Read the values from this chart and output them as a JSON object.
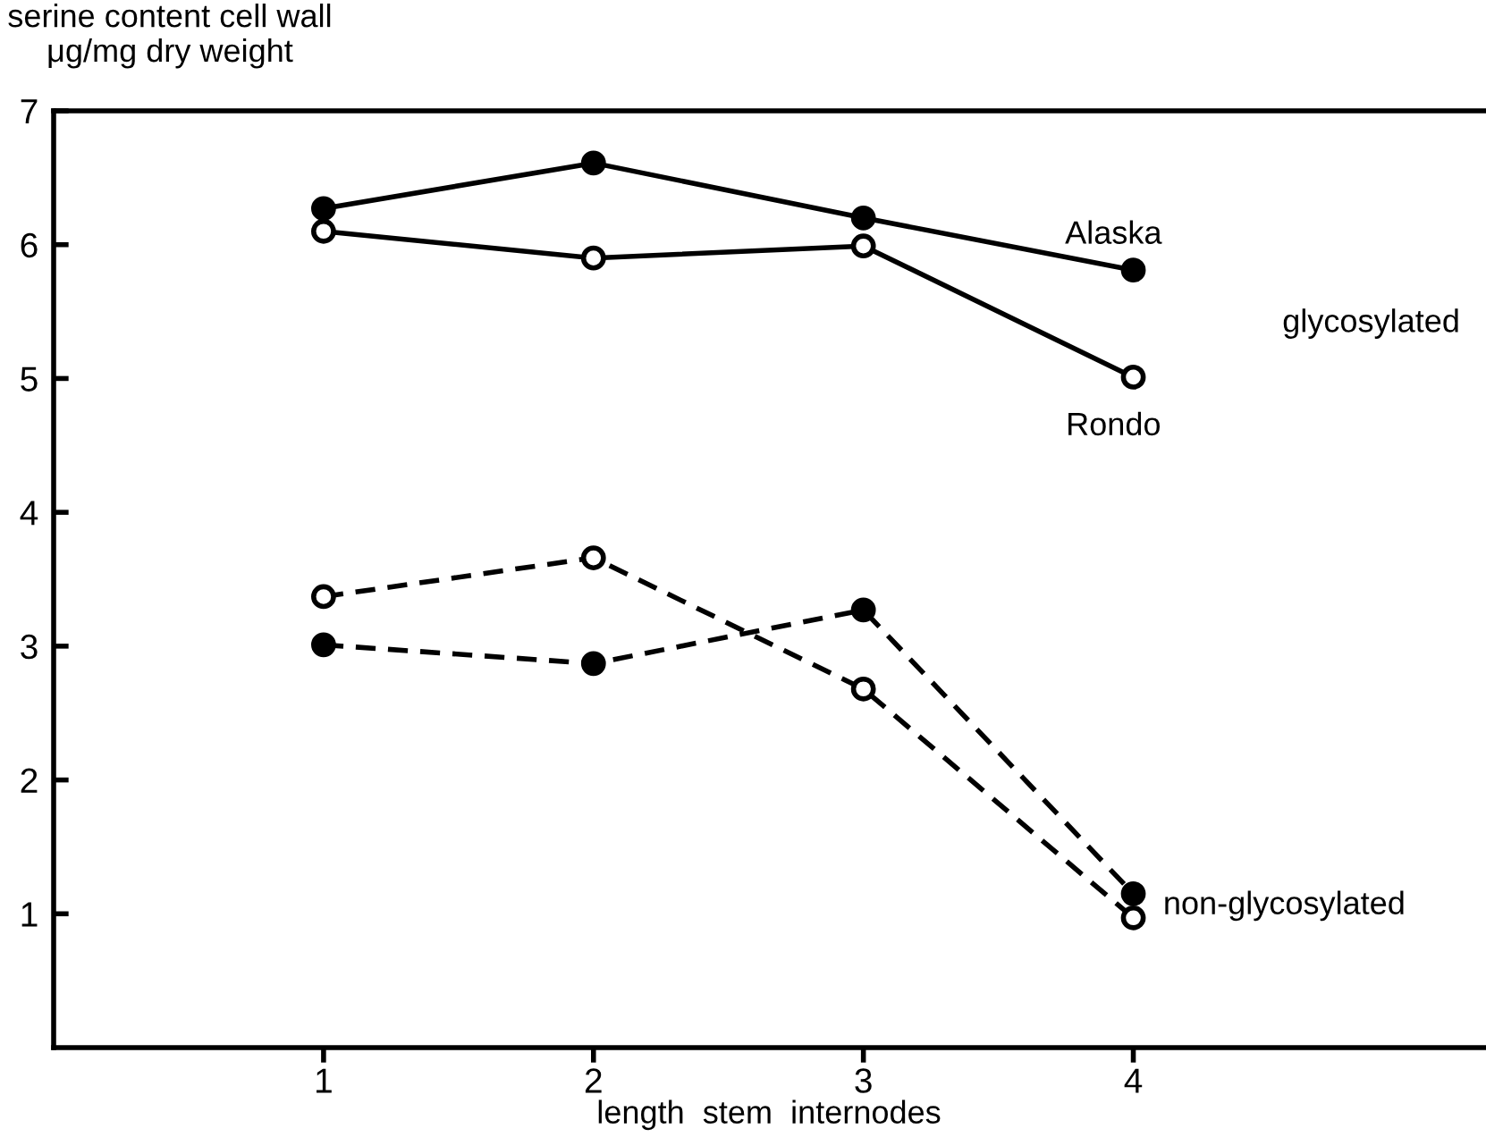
{
  "chart_data": {
    "type": "line",
    "ylabel": "serine content cell wall\nμg/mg dry weight",
    "xlabel": "length  stem  internodes",
    "x": [
      1,
      2,
      3,
      4
    ],
    "xlim": [
      0,
      5.3
    ],
    "xticks": [
      1,
      2,
      3,
      4
    ],
    "ylim": [
      0,
      7
    ],
    "yticks": [
      1,
      2,
      3,
      4,
      5,
      6,
      7
    ],
    "grid": false,
    "legend": false,
    "marker": "circle",
    "series": [
      {
        "name": "Alaska",
        "color": "#000000",
        "line_style": "solid",
        "values": [
          6.27,
          6.61,
          6.2,
          5.81
        ]
      },
      {
        "name": "Rondo",
        "color": "#ffffff",
        "line_style": "solid",
        "values": [
          6.1,
          5.9,
          5.99,
          5.01
        ]
      },
      {
        "color": "#000000",
        "line_style": "dashed",
        "values": [
          3.01,
          2.87,
          3.27,
          1.15
        ]
      },
      {
        "color": "#ffffff",
        "line_style": "dashed",
        "values": [
          3.37,
          3.66,
          2.68,
          0.97
        ]
      }
    ],
    "annotations": [
      "glycosylated",
      "non-glycosylated"
    ]
  }
}
